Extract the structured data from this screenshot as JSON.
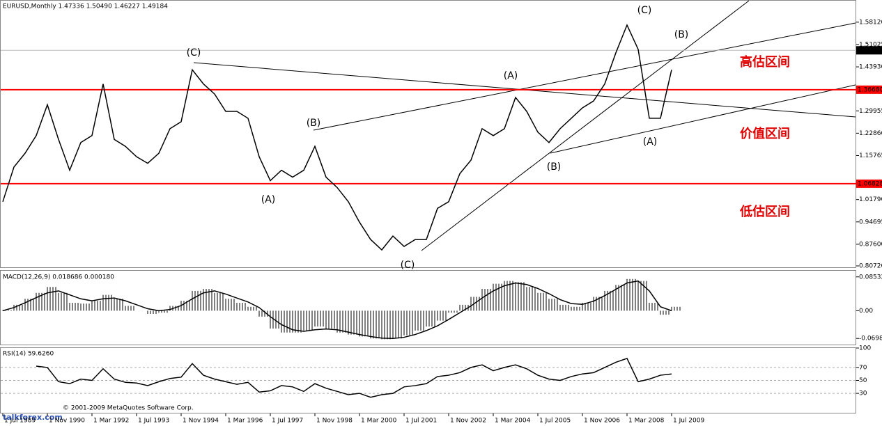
{
  "chart_data": [
    {
      "type": "line",
      "title": "EURUSD,Monthly  1.47336 1.50490 1.46227 1.49184",
      "values": [
        1.011,
        1.121,
        1.165,
        1.221,
        1.319,
        1.209,
        1.111,
        1.199,
        1.221,
        1.385,
        1.209,
        1.187,
        1.154,
        1.133,
        1.165,
        1.243,
        1.265,
        1.43,
        1.385,
        1.353,
        1.298,
        1.298,
        1.276,
        1.154,
        1.078,
        1.111,
        1.089,
        1.111,
        1.187,
        1.089,
        1.056,
        1.011,
        0.946,
        0.891,
        0.858,
        0.902,
        0.869,
        0.891,
        0.891,
        0.99,
        1.011,
        1.1,
        1.143,
        1.243,
        1.221,
        1.243,
        1.342,
        1.298,
        1.232,
        1.199,
        1.243,
        1.276,
        1.309,
        1.331,
        1.385,
        1.484,
        1.572,
        1.495,
        1.276,
        1.276,
        1.43
      ],
      "color": "#000000",
      "ylim": [
        0.8028,
        1.6494
      ],
      "yticks": [
        {
          "value": 1.5812,
          "label": "1.58120"
        },
        {
          "value": 1.51025,
          "label": "1.51025"
        },
        {
          "value": 1.4393,
          "label": "1.43930"
        },
        {
          "value": 1.29955,
          "label": "1.29955"
        },
        {
          "value": 1.2286,
          "label": "1.22860"
        },
        {
          "value": 1.15765,
          "label": "1.15765"
        },
        {
          "value": 1.0179,
          "label": "1.01790"
        },
        {
          "value": 0.94695,
          "label": "0.94695"
        },
        {
          "value": 0.876,
          "label": "0.87600"
        },
        {
          "value": 0.8072,
          "label": "0.80720"
        }
      ],
      "levels": [
        {
          "value": 1.3668,
          "label": "1.36680"
        },
        {
          "value": 1.06828,
          "label": "1.06828"
        }
      ],
      "level_color": "#ff0000",
      "current_price": {
        "value": 1.49184,
        "label": "1.49184"
      },
      "annotations": [
        "(C)",
        "(B)",
        "(A)",
        "(C)",
        "(A)",
        "(B)",
        "(C)",
        "(B)",
        "(A)"
      ],
      "zones": [
        "高估区间",
        "价值区间",
        "低估区间"
      ],
      "x_labels": [
        "1 Jul 1989",
        "1 Nov 1990",
        "1 Mar 1992",
        "1 Jul 1993",
        "1 Nov 1994",
        "1 Mar 1996",
        "1 Jul 1997",
        "1 Nov 1998",
        "1 Mar 2000",
        "1 Jul 2001",
        "1 Nov 2002",
        "1 Mar 2004",
        "1 Jul 2005",
        "1 Nov 2006",
        "1 Mar 2008",
        "1 Jul 2009"
      ]
    },
    {
      "type": "macd",
      "title": "MACD(12,26,9) 0.018686 0.000180",
      "series": [
        {
          "name": "MACD",
          "color": "#000000",
          "values": [
            0.002,
            0.015,
            0.03,
            0.045,
            0.06,
            0.045,
            0.02,
            0.018,
            0.025,
            0.04,
            0.03,
            0.012,
            0.0,
            -0.008,
            -0.005,
            0.012,
            0.025,
            0.05,
            0.055,
            0.045,
            0.03,
            0.02,
            0.01,
            -0.015,
            -0.045,
            -0.055,
            -0.055,
            -0.05,
            -0.04,
            -0.045,
            -0.055,
            -0.06,
            -0.065,
            -0.07,
            -0.072,
            -0.07,
            -0.062,
            -0.05,
            -0.04,
            -0.025,
            -0.005,
            0.015,
            0.035,
            0.055,
            0.068,
            0.075,
            0.072,
            0.06,
            0.045,
            0.03,
            0.015,
            0.01,
            0.02,
            0.035,
            0.05,
            0.065,
            0.08,
            0.075,
            0.02,
            -0.01,
            0.01
          ]
        },
        {
          "name": "Signal",
          "color": "#000000",
          "values": [
            0.0,
            0.008,
            0.02,
            0.033,
            0.045,
            0.05,
            0.04,
            0.03,
            0.025,
            0.03,
            0.032,
            0.025,
            0.015,
            0.005,
            0.0,
            0.003,
            0.013,
            0.03,
            0.045,
            0.05,
            0.042,
            0.032,
            0.022,
            0.008,
            -0.015,
            -0.035,
            -0.048,
            -0.052,
            -0.048,
            -0.046,
            -0.048,
            -0.054,
            -0.06,
            -0.065,
            -0.069,
            -0.07,
            -0.067,
            -0.06,
            -0.05,
            -0.038,
            -0.022,
            -0.005,
            0.012,
            0.032,
            0.05,
            0.063,
            0.07,
            0.066,
            0.056,
            0.043,
            0.028,
            0.018,
            0.016,
            0.024,
            0.038,
            0.054,
            0.07,
            0.075,
            0.05,
            0.01,
            0.0
          ]
        }
      ],
      "ylim": [
        -0.0853,
        0.1007
      ],
      "yticks": [
        {
          "value": 0.08532,
          "label": "0.085320"
        },
        {
          "value": 0,
          "label": "0.00"
        },
        -0.06985
      ]
    },
    {
      "type": "rsi",
      "title": "RSI(14) 59.6260",
      "values": [
        null,
        null,
        null,
        72,
        70,
        48,
        45,
        52,
        50,
        68,
        52,
        47,
        46,
        42,
        48,
        53,
        55,
        76,
        58,
        52,
        48,
        44,
        47,
        32,
        34,
        42,
        40,
        33,
        45,
        38,
        33,
        28,
        30,
        24,
        28,
        30,
        40,
        42,
        45,
        56,
        58,
        62,
        70,
        74,
        65,
        70,
        74,
        68,
        58,
        52,
        50,
        56,
        60,
        62,
        70,
        78,
        84,
        48,
        52,
        58,
        60
      ],
      "color": "#000000",
      "ylim": [
        0,
        100
      ],
      "yticks": [
        100,
        70,
        50,
        30
      ],
      "grid": [
        70,
        50,
        30
      ],
      "footer": "© 2001-2009 MetaQuotes Software Corp.",
      "watermark": "talkforex.com"
    }
  ]
}
